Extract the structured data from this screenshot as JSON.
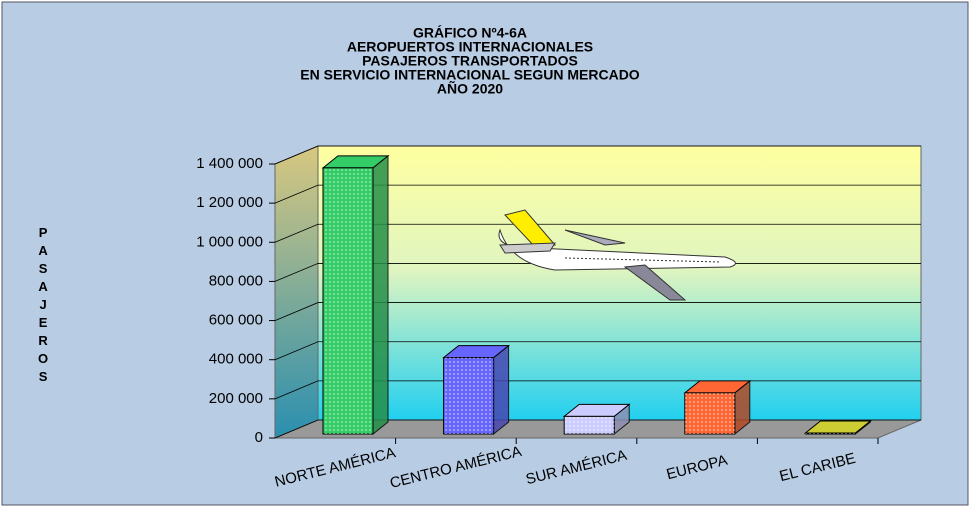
{
  "chart_data": {
    "type": "bar",
    "title": [
      "GRÁFICO Nº4-6A",
      "AEROPUERTOS INTERNACIONALES",
      "PASAJEROS TRANSPORTADOS",
      "EN SERVICIO INTERNACIONAL SEGUN MERCADO",
      "AÑO 2020"
    ],
    "y_label": "PASAJEROS",
    "categories": [
      "NORTE AMÉRICA",
      "CENTRO AMÉRICA",
      "SUR AMÉRICA",
      "EUROPA",
      "EL CARIBE"
    ],
    "values": [
      1360000,
      390000,
      90000,
      210000,
      5000
    ],
    "colors": [
      "#33cc66",
      "#6666ff",
      "#ccccff",
      "#ff6633",
      "#cccc33"
    ],
    "ylim": [
      0,
      1400000
    ],
    "yticks": [
      0,
      {
        "value": 200000,
        "label": "200 000"
      },
      {
        "value": 400000,
        "label": "400 000"
      },
      {
        "value": 600000,
        "label": "600 000"
      },
      {
        "value": 800000,
        "label": "800 000"
      },
      {
        "value": 1000000,
        "label": "1 000 000"
      },
      {
        "value": 1200000,
        "label": "1 200 000"
      },
      {
        "value": 1400000,
        "label": "1 400 000"
      }
    ],
    "grid": true
  }
}
